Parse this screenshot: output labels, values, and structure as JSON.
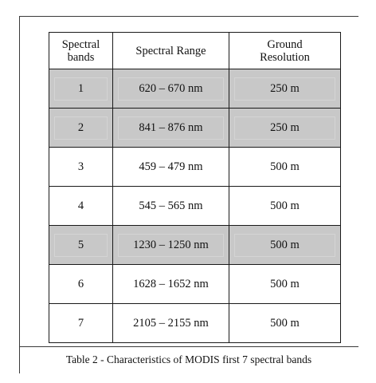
{
  "table": {
    "headers": {
      "band_line1": "Spectral",
      "band_line2": "bands",
      "range": "Spectral Range",
      "res_line1": "Ground",
      "res_line2": "Resolution"
    },
    "rows": [
      {
        "band": "1",
        "range": "620 – 670 nm",
        "resolution": "250 m",
        "shaded": true
      },
      {
        "band": "2",
        "range": "841 – 876 nm",
        "resolution": "250 m",
        "shaded": true
      },
      {
        "band": "3",
        "range": "459 – 479 nm",
        "resolution": "500 m",
        "shaded": false
      },
      {
        "band": "4",
        "range": "545 – 565 nm",
        "resolution": "500 m",
        "shaded": false
      },
      {
        "band": "5",
        "range": "1230 – 1250 nm",
        "resolution": "500 m",
        "shaded": true
      },
      {
        "band": "6",
        "range": "1628 – 1652 nm",
        "resolution": "500 m",
        "shaded": false
      },
      {
        "band": "7",
        "range": "2105 – 2155 nm",
        "resolution": "500 m",
        "shaded": false
      }
    ],
    "shade_color": "#c8c8c8"
  },
  "caption": "Table 2 - Characteristics of MODIS first 7 spectral bands"
}
